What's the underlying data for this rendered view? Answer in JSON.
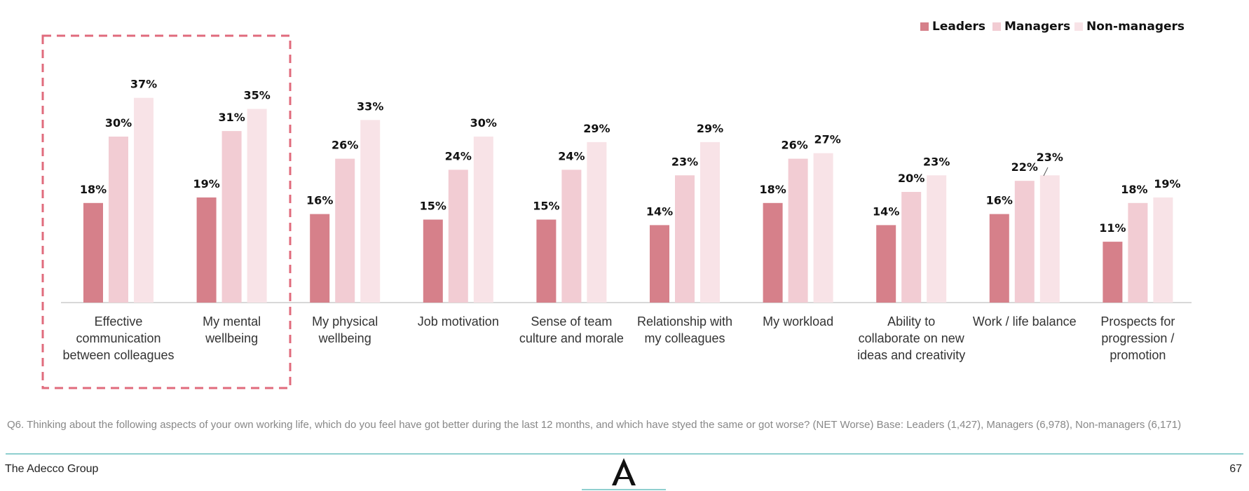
{
  "colors": {
    "leaders": "#d6808a",
    "managers": "#f2ccd3",
    "non_managers": "#f8e3e7",
    "highlight_box": "#e06b7c",
    "axis": "#cccccc",
    "footer_line": "#8fcfcf"
  },
  "chart_data": {
    "type": "bar",
    "title": "",
    "xlabel": "",
    "ylabel": "",
    "ylim": [
      0,
      40
    ],
    "legend_position": "top-right",
    "categories": [
      "Effective communication between colleagues",
      "My mental wellbeing",
      "My physical wellbeing",
      "Job motivation",
      "Sense of team culture and morale",
      "Relationship with my colleagues",
      "My workload",
      "Ability to collaborate on new ideas and creativity",
      "Work / life balance",
      "Prospects for progression / promotion"
    ],
    "category_lines": [
      [
        "Effective",
        "communication",
        "between colleagues"
      ],
      [
        "My mental",
        "wellbeing"
      ],
      [
        "My physical",
        "wellbeing"
      ],
      [
        "Job motivation"
      ],
      [
        "Sense of team",
        "culture and morale"
      ],
      [
        "Relationship with",
        "my colleagues"
      ],
      [
        "My workload"
      ],
      [
        "Ability to",
        "collaborate on new",
        "ideas and creativity"
      ],
      [
        "Work / life balance"
      ],
      [
        "Prospects for",
        "progression /",
        "promotion"
      ]
    ],
    "series": [
      {
        "name": "Leaders",
        "values": [
          18,
          19,
          16,
          15,
          15,
          14,
          18,
          14,
          16,
          11
        ]
      },
      {
        "name": "Managers",
        "values": [
          30,
          31,
          26,
          24,
          24,
          23,
          26,
          20,
          22,
          18
        ]
      },
      {
        "name": "Non-managers",
        "values": [
          37,
          35,
          33,
          30,
          29,
          29,
          27,
          23,
          23,
          19
        ]
      }
    ],
    "value_suffix": "%",
    "highlighted_categories": [
      0,
      1
    ]
  },
  "footnote": "Q6. Thinking about the following aspects of your own working life, which do you feel have got better during the last 12 months, and which have styed the same or got worse? (NET Worse) Base: Leaders (1,427), Managers (6,978), Non-managers (6,171)",
  "footer": {
    "company": "The Adecco Group",
    "logo_letter": "A",
    "page_number": "67"
  }
}
